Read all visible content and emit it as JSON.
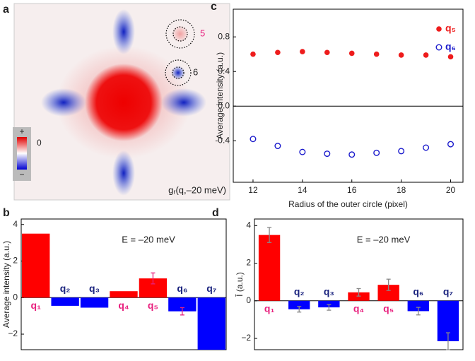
{
  "panel_labels": [
    "a",
    "b",
    "c",
    "d"
  ],
  "image_panel": {
    "colorbar_labels": [
      "+",
      "0",
      "−"
    ],
    "annotations": [
      "5",
      "6"
    ],
    "caption": "gᵣ(q,–20 meV)"
  },
  "chart_data": [
    {
      "type": "bar",
      "annotation": "E = –20 meV",
      "ylabel": "Average intensity (a.u.)",
      "categories": [
        "q₁",
        "q₂",
        "q₃",
        "q₄",
        "q₅",
        "q₆",
        "q₇"
      ],
      "values": [
        3.5,
        -0.45,
        -0.55,
        0.35,
        1.05,
        -0.75,
        -2.85
      ],
      "errors": [
        null,
        null,
        null,
        null,
        0.3,
        0.2,
        null
      ],
      "colors": [
        "#ff0000",
        "#0000ff",
        "#0000ff",
        "#ff0000",
        "#ff0000",
        "#0000ff",
        "#0000ff"
      ],
      "label_colors": [
        "#e8207e",
        "#1a237e",
        "#1a237e",
        "#e8207e",
        "#e8207e",
        "#1a237e",
        "#1a237e"
      ],
      "error_color": "#e8207e",
      "ylim": [
        -2.85,
        4.3
      ],
      "yticks": [
        4,
        2,
        0,
        {
          "value": -2,
          "label": "−2"
        }
      ],
      "zero_line": true
    },
    {
      "type": "scatter",
      "xlabel": "Radius of the outer circle (pixel)",
      "ylabel": "Average intensity (a.u.)",
      "x": [
        12,
        13,
        14,
        15,
        16,
        17,
        18,
        19,
        20
      ],
      "series": [
        {
          "name": "q₅",
          "color": "#ee1c1c",
          "marker": "filled",
          "values": [
            0.6,
            0.62,
            0.63,
            0.62,
            0.61,
            0.6,
            0.59,
            0.59,
            0.57
          ]
        },
        {
          "name": "q₆",
          "color": "#1a1acc",
          "marker": "open",
          "values": [
            -0.38,
            -0.46,
            -0.53,
            -0.55,
            -0.56,
            -0.54,
            -0.52,
            -0.48,
            -0.44
          ]
        }
      ],
      "xlim": [
        11.2,
        20.5
      ],
      "xticks": [
        12,
        14,
        16,
        18,
        20
      ],
      "ylim": [
        -0.88,
        1.12
      ],
      "yticks": [
        0.8,
        0.4,
        {
          "value": 0,
          "label": "0.0"
        },
        -0.4
      ],
      "legend": "upper right",
      "zero_line": true
    },
    {
      "type": "bar",
      "annotation": "E = –20 meV",
      "ylabel": "Ī (a.u.)",
      "categories": [
        "q₁",
        "q₂",
        "q₃",
        "q₄",
        "q₅",
        "q₆",
        "q₇"
      ],
      "values": [
        3.5,
        -0.45,
        -0.35,
        0.45,
        0.85,
        -0.55,
        -2.15
      ],
      "errors": [
        0.4,
        0.15,
        0.15,
        0.2,
        0.3,
        0.2,
        0.45
      ],
      "colors": [
        "#ff0000",
        "#0000ff",
        "#0000ff",
        "#ff0000",
        "#ff0000",
        "#0000ff",
        "#0000ff"
      ],
      "label_colors": [
        "#e8207e",
        "#1a237e",
        "#1a237e",
        "#e8207e",
        "#e8207e",
        "#1a237e",
        "#1a237e"
      ],
      "error_color": "#888888",
      "ylim": [
        -2.6,
        4.35
      ],
      "yticks": [
        4,
        2,
        0,
        {
          "value": -2,
          "label": "−2"
        }
      ],
      "zero_line": true
    }
  ]
}
